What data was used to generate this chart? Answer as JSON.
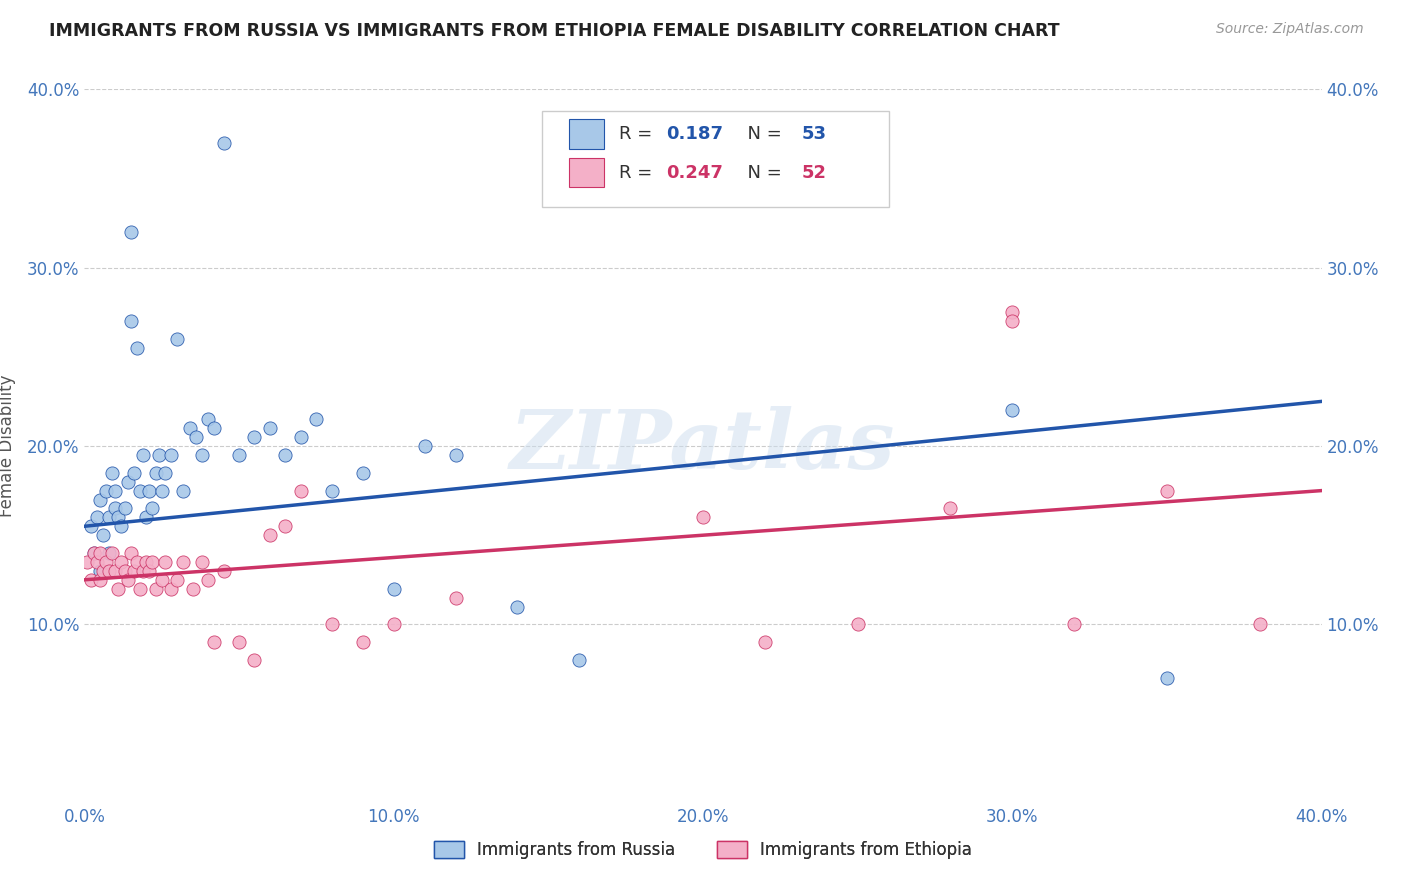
{
  "title": "IMMIGRANTS FROM RUSSIA VS IMMIGRANTS FROM ETHIOPIA FEMALE DISABILITY CORRELATION CHART",
  "source": "Source: ZipAtlas.com",
  "ylabel": "Female Disability",
  "x_label_russia": "Immigrants from Russia",
  "x_label_ethiopia": "Immigrants from Ethiopia",
  "xlim": [
    0.0,
    0.4
  ],
  "ylim": [
    0.0,
    0.4
  ],
  "xticks": [
    0.0,
    0.1,
    0.2,
    0.3,
    0.4
  ],
  "yticks": [
    0.1,
    0.2,
    0.3,
    0.4
  ],
  "ytick_labels": [
    "10.0%",
    "20.0%",
    "30.0%",
    "40.0%"
  ],
  "xtick_labels": [
    "0.0%",
    "10.0%",
    "20.0%",
    "30.0%",
    "40.0%"
  ],
  "russia_R": 0.187,
  "russia_N": 53,
  "ethiopia_R": 0.247,
  "ethiopia_N": 52,
  "russia_color": "#a8c8e8",
  "ethiopia_color": "#f4b0c8",
  "russia_line_color": "#2255aa",
  "ethiopia_line_color": "#cc3366",
  "watermark": "ZIPatlas",
  "russia_scatter_x": [
    0.002,
    0.003,
    0.004,
    0.005,
    0.005,
    0.006,
    0.007,
    0.008,
    0.008,
    0.009,
    0.01,
    0.01,
    0.011,
    0.012,
    0.013,
    0.014,
    0.015,
    0.015,
    0.016,
    0.017,
    0.018,
    0.019,
    0.02,
    0.021,
    0.022,
    0.023,
    0.024,
    0.025,
    0.026,
    0.028,
    0.03,
    0.032,
    0.034,
    0.036,
    0.038,
    0.04,
    0.042,
    0.045,
    0.05,
    0.055,
    0.06,
    0.065,
    0.07,
    0.075,
    0.08,
    0.09,
    0.1,
    0.11,
    0.12,
    0.14,
    0.16,
    0.3,
    0.35
  ],
  "russia_scatter_y": [
    0.155,
    0.14,
    0.16,
    0.13,
    0.17,
    0.15,
    0.175,
    0.16,
    0.14,
    0.185,
    0.175,
    0.165,
    0.16,
    0.155,
    0.165,
    0.18,
    0.27,
    0.32,
    0.185,
    0.255,
    0.175,
    0.195,
    0.16,
    0.175,
    0.165,
    0.185,
    0.195,
    0.175,
    0.185,
    0.195,
    0.26,
    0.175,
    0.21,
    0.205,
    0.195,
    0.215,
    0.21,
    0.37,
    0.195,
    0.205,
    0.21,
    0.195,
    0.205,
    0.215,
    0.175,
    0.185,
    0.12,
    0.2,
    0.195,
    0.11,
    0.08,
    0.22,
    0.07
  ],
  "ethiopia_scatter_x": [
    0.001,
    0.002,
    0.003,
    0.004,
    0.005,
    0.005,
    0.006,
    0.007,
    0.008,
    0.009,
    0.01,
    0.011,
    0.012,
    0.013,
    0.014,
    0.015,
    0.016,
    0.017,
    0.018,
    0.019,
    0.02,
    0.021,
    0.022,
    0.023,
    0.025,
    0.026,
    0.028,
    0.03,
    0.032,
    0.035,
    0.038,
    0.04,
    0.042,
    0.045,
    0.05,
    0.055,
    0.06,
    0.065,
    0.07,
    0.09,
    0.2,
    0.22,
    0.25,
    0.28,
    0.3,
    0.3,
    0.32,
    0.35,
    0.38,
    0.08,
    0.1,
    0.12
  ],
  "ethiopia_scatter_y": [
    0.135,
    0.125,
    0.14,
    0.135,
    0.14,
    0.125,
    0.13,
    0.135,
    0.13,
    0.14,
    0.13,
    0.12,
    0.135,
    0.13,
    0.125,
    0.14,
    0.13,
    0.135,
    0.12,
    0.13,
    0.135,
    0.13,
    0.135,
    0.12,
    0.125,
    0.135,
    0.12,
    0.125,
    0.135,
    0.12,
    0.135,
    0.125,
    0.09,
    0.13,
    0.09,
    0.08,
    0.15,
    0.155,
    0.175,
    0.09,
    0.16,
    0.09,
    0.1,
    0.165,
    0.275,
    0.27,
    0.1,
    0.175,
    0.1,
    0.1,
    0.1,
    0.115
  ],
  "bg_color": "#ffffff",
  "grid_color": "#cccccc",
  "tick_label_color": "#4477bb"
}
